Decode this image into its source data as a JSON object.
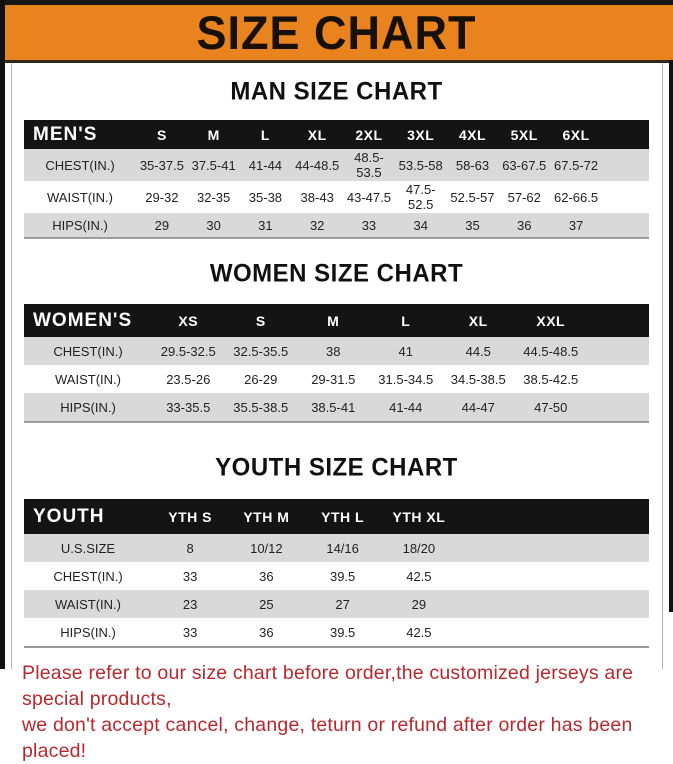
{
  "banner": {
    "title": "SIZE CHART",
    "bg_color": "#E8831E"
  },
  "sections": [
    {
      "heading": "MAN SIZE CHART",
      "table": {
        "header_label": "MEN'S",
        "columns": [
          "S",
          "M",
          "L",
          "XL",
          "2XL",
          "3XL",
          "4XL",
          "5XL",
          "6XL"
        ],
        "rows": [
          {
            "label": "CHEST(IN.)",
            "values": [
              "35-37.5",
              "37.5-41",
              "41-44",
              "44-48.5",
              "48.5-53.5",
              "53.5-58",
              "58-63",
              "63-67.5",
              "67.5-72"
            ]
          },
          {
            "label": "WAIST(IN.)",
            "values": [
              "29-32",
              "32-35",
              "35-38",
              "38-43",
              "43-47.5",
              "47.5-52.5",
              "52.5-57",
              "57-62",
              "62-66.5"
            ]
          },
          {
            "label": "HIPS(IN.)",
            "values": [
              "29",
              "30",
              "31",
              "32",
              "33",
              "34",
              "35",
              "36",
              "37"
            ]
          }
        ]
      }
    },
    {
      "heading": "WOMEN SIZE CHART",
      "table": {
        "header_label": "WOMEN'S",
        "columns": [
          "XS",
          "S",
          "M",
          "L",
          "XL",
          "XXL"
        ],
        "rows": [
          {
            "label": "CHEST(IN.)",
            "values": [
              "29.5-32.5",
              "32.5-35.5",
              "38",
              "41",
              "44.5",
              "44.5-48.5"
            ]
          },
          {
            "label": "WAIST(IN.)",
            "values": [
              "23.5-26",
              "26-29",
              "29-31.5",
              "31.5-34.5",
              "34.5-38.5",
              "38.5-42.5"
            ]
          },
          {
            "label": "HIPS(IN.)",
            "values": [
              "33-35.5",
              "35.5-38.5",
              "38.5-41",
              "41-44",
              "44-47",
              "47-50"
            ]
          }
        ]
      }
    },
    {
      "heading": "YOUTH SIZE CHART",
      "table": {
        "header_label": "YOUTH",
        "columns": [
          "YTH S",
          "YTH M",
          "YTH L",
          "YTH XL"
        ],
        "rows": [
          {
            "label": "U.S.SIZE",
            "values": [
              "8",
              "10/12",
              "14/16",
              "18/20"
            ]
          },
          {
            "label": "CHEST(IN.)",
            "values": [
              "33",
              "36",
              "39.5",
              "42.5"
            ]
          },
          {
            "label": "WAIST(IN.)",
            "values": [
              "23",
              "25",
              "27",
              "29"
            ]
          },
          {
            "label": "HIPS(IN.)",
            "values": [
              "33",
              "36",
              "39.5",
              "42.5"
            ]
          }
        ]
      }
    }
  ],
  "footer": {
    "line1": "Please refer to our size chart before order,the customized jerseys are special products,",
    "line2": "we don't accept cancel, change, teturn or refund after order has been placed!",
    "text_color": "#b9282c"
  },
  "colors": {
    "banner_bg": "#E8831E",
    "table_header_bg": "#141414",
    "alt_row_bg": "#d9d9d9",
    "footer_red": "#b9282c"
  }
}
